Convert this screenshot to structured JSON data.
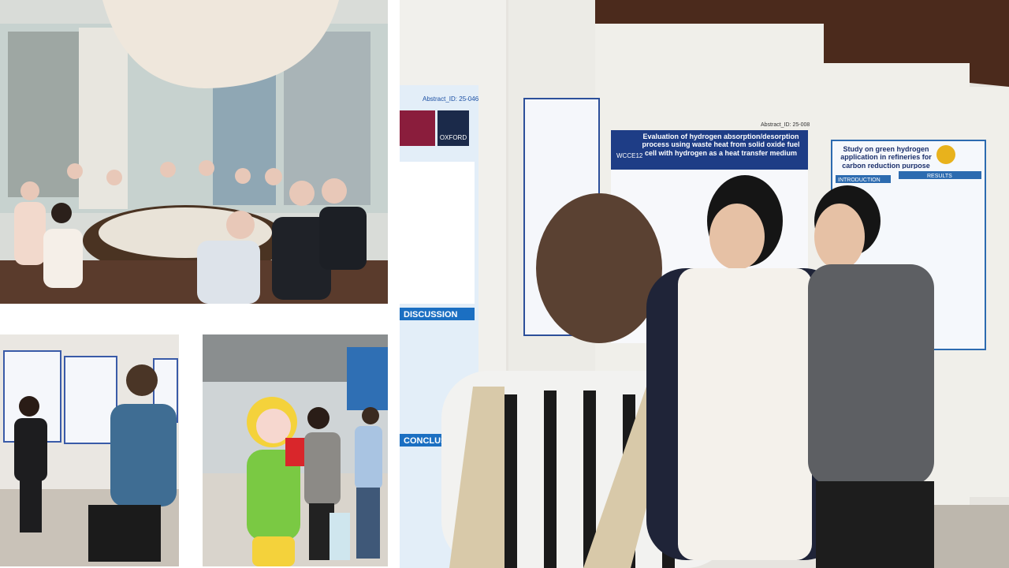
{
  "posters": [
    {
      "abstract_id": "Abstract_ID: 25-046",
      "logo": "OXFORD",
      "sections": [
        "DISCUSSION",
        "CONCLUSION"
      ]
    },
    {
      "conference": "WCCE12",
      "abstract_id": "Abstract_ID: 25-008",
      "title": "Evaluation of hydrogen absorption/desorption process using waste heat from solid oxide fuel cell with hydrogen as a heat transfer medium"
    },
    {
      "title": "Study on green hydrogen application in refineries for carbon reduction purpose",
      "sections": [
        "INTRODUCTION",
        "RESULTS"
      ]
    }
  ]
}
